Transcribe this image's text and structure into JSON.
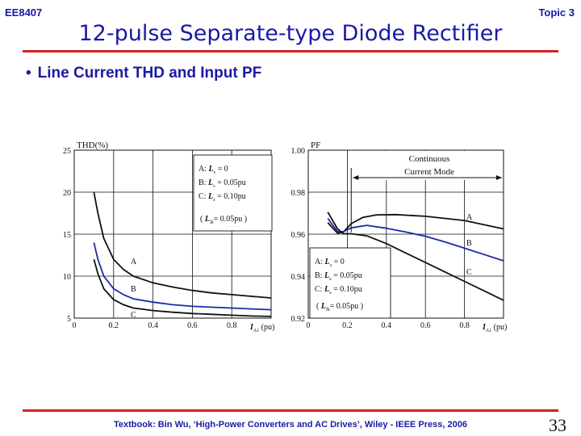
{
  "header": {
    "course": "EE8407",
    "topic": "Topic 3"
  },
  "title": "12-pulse Separate-type Diode Rectifier",
  "bullet": "Line Current THD and Input PF",
  "footer": "Textbook: Bin Wu, ‘High-Power Converters and AC Drives’, Wiley - IEEE Press, 2006",
  "page_number": "33",
  "chart_data": [
    {
      "type": "line",
      "title": "",
      "ylabel": "THD(%)",
      "xlabel_sym": "I",
      "xlabel_sub": "A1",
      "xlabel_unit": "(pu)",
      "xlim": [
        0,
        1
      ],
      "ylim": [
        5,
        25
      ],
      "xticks": [
        "0",
        "0.2",
        "0.4",
        "0.6",
        "0.8"
      ],
      "yticks": [
        "5",
        "10",
        "15",
        "20",
        "25"
      ],
      "legend": {
        "lines": [
          {
            "pre": "A: ",
            "sym": "L",
            "sub": "s",
            "post": " = 0"
          },
          {
            "pre": "B: ",
            "sym": "L",
            "sub": "s",
            "post": " = 0.05pu"
          },
          {
            "pre": "C: ",
            "sym": "L",
            "sub": "s",
            "post": " = 0.10pu"
          }
        ],
        "note": {
          "pre": "( ",
          "sym": "L",
          "sub": "lk",
          "post": "= 0.05pu )"
        }
      },
      "series": [
        {
          "name": "A",
          "color": "#111111",
          "x": [
            0.1,
            0.12,
            0.15,
            0.2,
            0.25,
            0.3,
            0.4,
            0.5,
            0.6,
            0.7,
            0.8,
            0.9,
            1.0
          ],
          "y": [
            20,
            17.5,
            14.5,
            12.0,
            10.8,
            10.0,
            9.2,
            8.7,
            8.3,
            8.0,
            7.8,
            7.6,
            7.4
          ]
        },
        {
          "name": "B",
          "color": "#1a2aa8",
          "x": [
            0.1,
            0.12,
            0.15,
            0.2,
            0.25,
            0.3,
            0.4,
            0.5,
            0.6,
            0.7,
            0.8,
            0.9,
            1.0
          ],
          "y": [
            14,
            12.0,
            10.0,
            8.5,
            7.8,
            7.3,
            6.9,
            6.6,
            6.4,
            6.3,
            6.2,
            6.1,
            6.0
          ]
        },
        {
          "name": "C",
          "color": "#111111",
          "x": [
            0.1,
            0.12,
            0.15,
            0.2,
            0.25,
            0.3,
            0.4,
            0.5,
            0.6,
            0.7,
            0.8,
            0.9,
            1.0
          ],
          "y": [
            12,
            10.3,
            8.5,
            7.2,
            6.6,
            6.2,
            5.9,
            5.7,
            5.55,
            5.45,
            5.35,
            5.25,
            5.2
          ]
        }
      ],
      "labels": [
        "A",
        "B",
        "C"
      ]
    },
    {
      "type": "line",
      "title": "",
      "ylabel": "PF",
      "xlabel_sym": "I",
      "xlabel_sub": "A1",
      "xlabel_unit": "(pu)",
      "xlim": [
        0,
        1
      ],
      "ylim": [
        0.92,
        1.0
      ],
      "xticks": [
        "0",
        "0.2",
        "0.4",
        "0.6",
        "0.8"
      ],
      "yticks": [
        "0.92",
        "0.94",
        "0.96",
        "0.98",
        "1.00"
      ],
      "annotation": [
        "Continuous",
        "Current Mode"
      ],
      "legend": {
        "lines": [
          {
            "pre": "A: ",
            "sym": "L",
            "sub": "s",
            "post": " = 0"
          },
          {
            "pre": "B: ",
            "sym": "L",
            "sub": "s",
            "post": " = 0.05pu"
          },
          {
            "pre": "C: ",
            "sym": "L",
            "sub": "s",
            "post": " = 0.10pu"
          }
        ],
        "note": {
          "pre": "( ",
          "sym": "L",
          "sub": "lk",
          "post": "= 0.05pu )"
        }
      },
      "series": [
        {
          "name": "A",
          "color": "#111111",
          "x": [
            0.1,
            0.15,
            0.18,
            0.22,
            0.28,
            0.35,
            0.45,
            0.6,
            0.8,
            1.0
          ],
          "y": [
            0.9655,
            0.9605,
            0.961,
            0.965,
            0.968,
            0.9692,
            0.9693,
            0.9685,
            0.9665,
            0.9625
          ]
        },
        {
          "name": "B",
          "color": "#1a2aa8",
          "x": [
            0.1,
            0.15,
            0.18,
            0.22,
            0.3,
            0.4,
            0.5,
            0.6,
            0.7,
            0.8,
            0.9,
            1.0
          ],
          "y": [
            0.9675,
            0.9612,
            0.9612,
            0.963,
            0.9642,
            0.9628,
            0.961,
            0.959,
            0.9563,
            0.9533,
            0.9503,
            0.9473
          ]
        },
        {
          "name": "C",
          "color": "#111111",
          "x": [
            0.1,
            0.15,
            0.18,
            0.22,
            0.3,
            0.4,
            0.5,
            0.6,
            0.7,
            0.8,
            0.9,
            1.0
          ],
          "y": [
            0.9705,
            0.9625,
            0.9602,
            0.9602,
            0.9592,
            0.9555,
            0.951,
            0.9465,
            0.942,
            0.9375,
            0.933,
            0.9285
          ]
        }
      ],
      "labels": [
        "A",
        "B",
        "C"
      ]
    }
  ]
}
